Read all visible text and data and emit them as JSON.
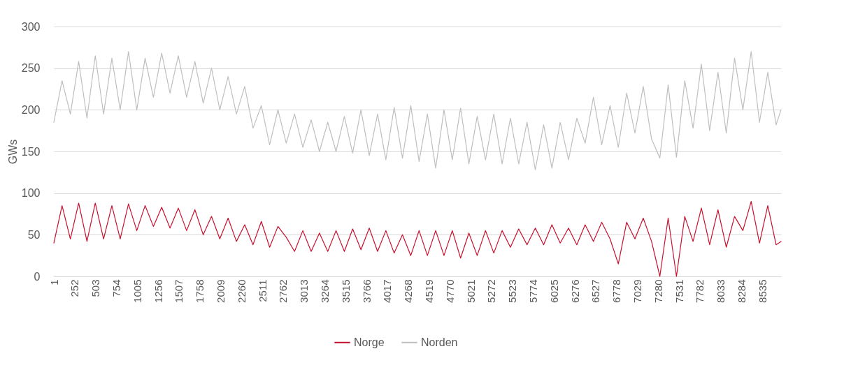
{
  "chart_data": {
    "type": "line",
    "ylabel": "GWs",
    "x": [
      1,
      100,
      200,
      300,
      400,
      500,
      600,
      700,
      800,
      900,
      1000,
      1100,
      1200,
      1300,
      1400,
      1500,
      1600,
      1700,
      1800,
      1900,
      2000,
      2100,
      2200,
      2300,
      2400,
      2500,
      2600,
      2700,
      2800,
      2900,
      3000,
      3100,
      3200,
      3300,
      3400,
      3500,
      3600,
      3700,
      3800,
      3900,
      4000,
      4100,
      4200,
      4300,
      4400,
      4500,
      4600,
      4700,
      4800,
      4900,
      5000,
      5100,
      5200,
      5300,
      5400,
      5500,
      5600,
      5700,
      5800,
      5900,
      6000,
      6100,
      6200,
      6300,
      6400,
      6500,
      6600,
      6700,
      6800,
      6900,
      7000,
      7100,
      7200,
      7300,
      7400,
      7500,
      7600,
      7700,
      7800,
      7900,
      8000,
      8100,
      8200,
      8300,
      8400,
      8500,
      8600,
      8700,
      8760
    ],
    "series": [
      {
        "name": "Norge",
        "color": "#c8102e",
        "values": [
          40,
          85,
          45,
          88,
          42,
          88,
          45,
          85,
          45,
          87,
          55,
          85,
          60,
          83,
          58,
          82,
          55,
          80,
          50,
          72,
          45,
          70,
          42,
          62,
          38,
          66,
          35,
          60,
          47,
          30,
          55,
          30,
          52,
          30,
          55,
          30,
          57,
          32,
          58,
          30,
          55,
          28,
          50,
          25,
          55,
          25,
          55,
          25,
          55,
          22,
          52,
          25,
          55,
          28,
          55,
          35,
          57,
          38,
          58,
          38,
          62,
          40,
          58,
          38,
          62,
          42,
          65,
          45,
          15,
          65,
          45,
          70,
          42,
          0,
          70,
          0,
          72,
          42,
          82,
          38,
          80,
          35,
          72,
          55,
          90,
          40,
          85,
          38,
          42
        ]
      },
      {
        "name": "Norden",
        "color": "#bfbfbf",
        "values": [
          185,
          235,
          195,
          258,
          190,
          265,
          195,
          262,
          200,
          270,
          200,
          262,
          215,
          268,
          220,
          265,
          215,
          258,
          208,
          250,
          200,
          240,
          195,
          228,
          178,
          205,
          158,
          200,
          160,
          195,
          155,
          188,
          150,
          185,
          150,
          192,
          148,
          200,
          145,
          195,
          140,
          203,
          142,
          205,
          138,
          195,
          130,
          200,
          140,
          202,
          135,
          192,
          140,
          195,
          135,
          190,
          135,
          185,
          128,
          182,
          130,
          185,
          140,
          190,
          160,
          215,
          158,
          205,
          155,
          220,
          172,
          228,
          165,
          142,
          230,
          143,
          235,
          178,
          255,
          175,
          245,
          172,
          262,
          200,
          270,
          185,
          245,
          182,
          200
        ]
      }
    ],
    "xlim": [
      1,
      8760
    ],
    "xticks": [
      1,
      252,
      503,
      754,
      1005,
      1256,
      1507,
      1758,
      2009,
      2260,
      2511,
      2762,
      3013,
      3264,
      3515,
      3766,
      4017,
      4268,
      4519,
      4770,
      5021,
      5272,
      5523,
      5774,
      6025,
      6276,
      6527,
      6778,
      7029,
      7280,
      7531,
      7782,
      8033,
      8284,
      8535
    ],
    "ylim": [
      0,
      300
    ],
    "yticks": [
      0,
      50,
      100,
      150,
      200,
      250,
      300
    ],
    "grid": "y",
    "legend": "bottom",
    "line_style": "solid",
    "marker": "none"
  }
}
